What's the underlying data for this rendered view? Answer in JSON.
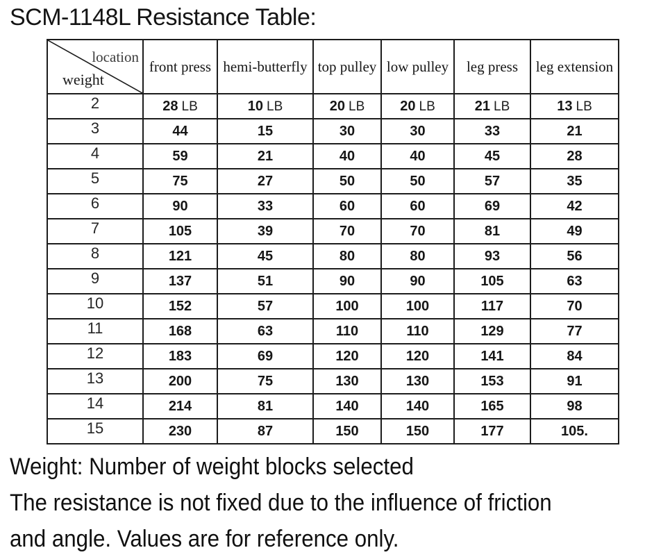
{
  "title": "SCM-1148L Resistance Table:",
  "table": {
    "corner": {
      "top_label": "location",
      "bottom_label": "weight"
    },
    "columns": [
      "front press",
      "hemi-butterfly",
      "top pulley",
      "low pulley",
      "leg press",
      "leg extension"
    ],
    "unit": "LB",
    "rows": [
      {
        "weight": "2",
        "with_unit": true,
        "values": [
          "28",
          "10",
          "20",
          "20",
          "21",
          "13"
        ]
      },
      {
        "weight": "3",
        "with_unit": false,
        "values": [
          "44",
          "15",
          "30",
          "30",
          "33",
          "21"
        ]
      },
      {
        "weight": "4",
        "with_unit": false,
        "values": [
          "59",
          "21",
          "40",
          "40",
          "45",
          "28"
        ]
      },
      {
        "weight": "5",
        "with_unit": false,
        "values": [
          "75",
          "27",
          "50",
          "50",
          "57",
          "35"
        ]
      },
      {
        "weight": "6",
        "with_unit": false,
        "values": [
          "90",
          "33",
          "60",
          "60",
          "69",
          "42"
        ]
      },
      {
        "weight": "7",
        "with_unit": false,
        "values": [
          "105",
          "39",
          "70",
          "70",
          "81",
          "49"
        ]
      },
      {
        "weight": "8",
        "with_unit": false,
        "values": [
          "121",
          "45",
          "80",
          "80",
          "93",
          "56"
        ]
      },
      {
        "weight": "9",
        "with_unit": false,
        "values": [
          "137",
          "51",
          "90",
          "90",
          "105",
          "63"
        ]
      },
      {
        "weight": "10",
        "with_unit": false,
        "values": [
          "152",
          "57",
          "100",
          "100",
          "117",
          "70"
        ]
      },
      {
        "weight": "11",
        "with_unit": false,
        "values": [
          "168",
          "63",
          "110",
          "110",
          "129",
          "77"
        ]
      },
      {
        "weight": "12",
        "with_unit": false,
        "values": [
          "183",
          "69",
          "120",
          "120",
          "141",
          "84"
        ]
      },
      {
        "weight": "13",
        "with_unit": false,
        "values": [
          "200",
          "75",
          "130",
          "130",
          "153",
          "91"
        ]
      },
      {
        "weight": "14",
        "with_unit": false,
        "values": [
          "214",
          "81",
          "140",
          "140",
          "165",
          "98"
        ]
      },
      {
        "weight": "15",
        "with_unit": false,
        "values": [
          "230",
          "87",
          "150",
          "150",
          "177",
          "105."
        ]
      }
    ]
  },
  "notes": [
    "Weight: Number of weight blocks selected",
    "The resistance is not fixed due to the influence of friction",
    "and angle. Values are for reference only."
  ]
}
